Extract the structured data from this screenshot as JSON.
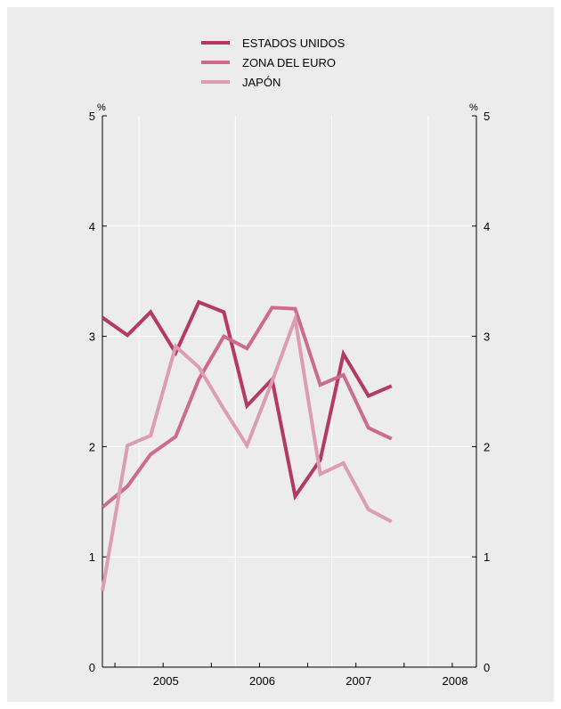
{
  "chart_data": {
    "type": "line",
    "title": "",
    "xlabel": "",
    "ylabel": "%",
    "ylabel_right": "%",
    "ylim": [
      0,
      5
    ],
    "yticks": [
      "0",
      "1",
      "2",
      "3",
      "4",
      "5"
    ],
    "xlim": [
      2004.62,
      2008.5
    ],
    "x_categories": [
      "2005",
      "2006",
      "2007",
      "2008"
    ],
    "grid": true,
    "legend_position": "top-center",
    "x": [
      2004.62,
      2004.88,
      2005.12,
      2005.38,
      2005.62,
      2005.88,
      2006.12,
      2006.38,
      2006.62,
      2006.88,
      2007.12,
      2007.38,
      2007.62
    ],
    "series": [
      {
        "name": "ESTADOS UNIDOS",
        "color": "#b53a62",
        "values": [
          3.17,
          3.01,
          3.22,
          2.85,
          3.31,
          3.22,
          2.37,
          2.61,
          1.55,
          1.88,
          2.84,
          2.46,
          2.55
        ]
      },
      {
        "name": "ZONA DEL EURO",
        "color": "#cc6b8c",
        "values": [
          1.45,
          1.64,
          1.93,
          2.09,
          2.61,
          3.0,
          2.89,
          3.26,
          3.25,
          2.56,
          2.65,
          2.17,
          2.07
        ]
      },
      {
        "name": "JAPÓN",
        "color": "#dc9cb2",
        "values": [
          0.69,
          2.01,
          2.1,
          2.91,
          2.72,
          2.34,
          2.01,
          2.59,
          3.16,
          1.75,
          1.85,
          1.43,
          1.32
        ]
      }
    ]
  }
}
